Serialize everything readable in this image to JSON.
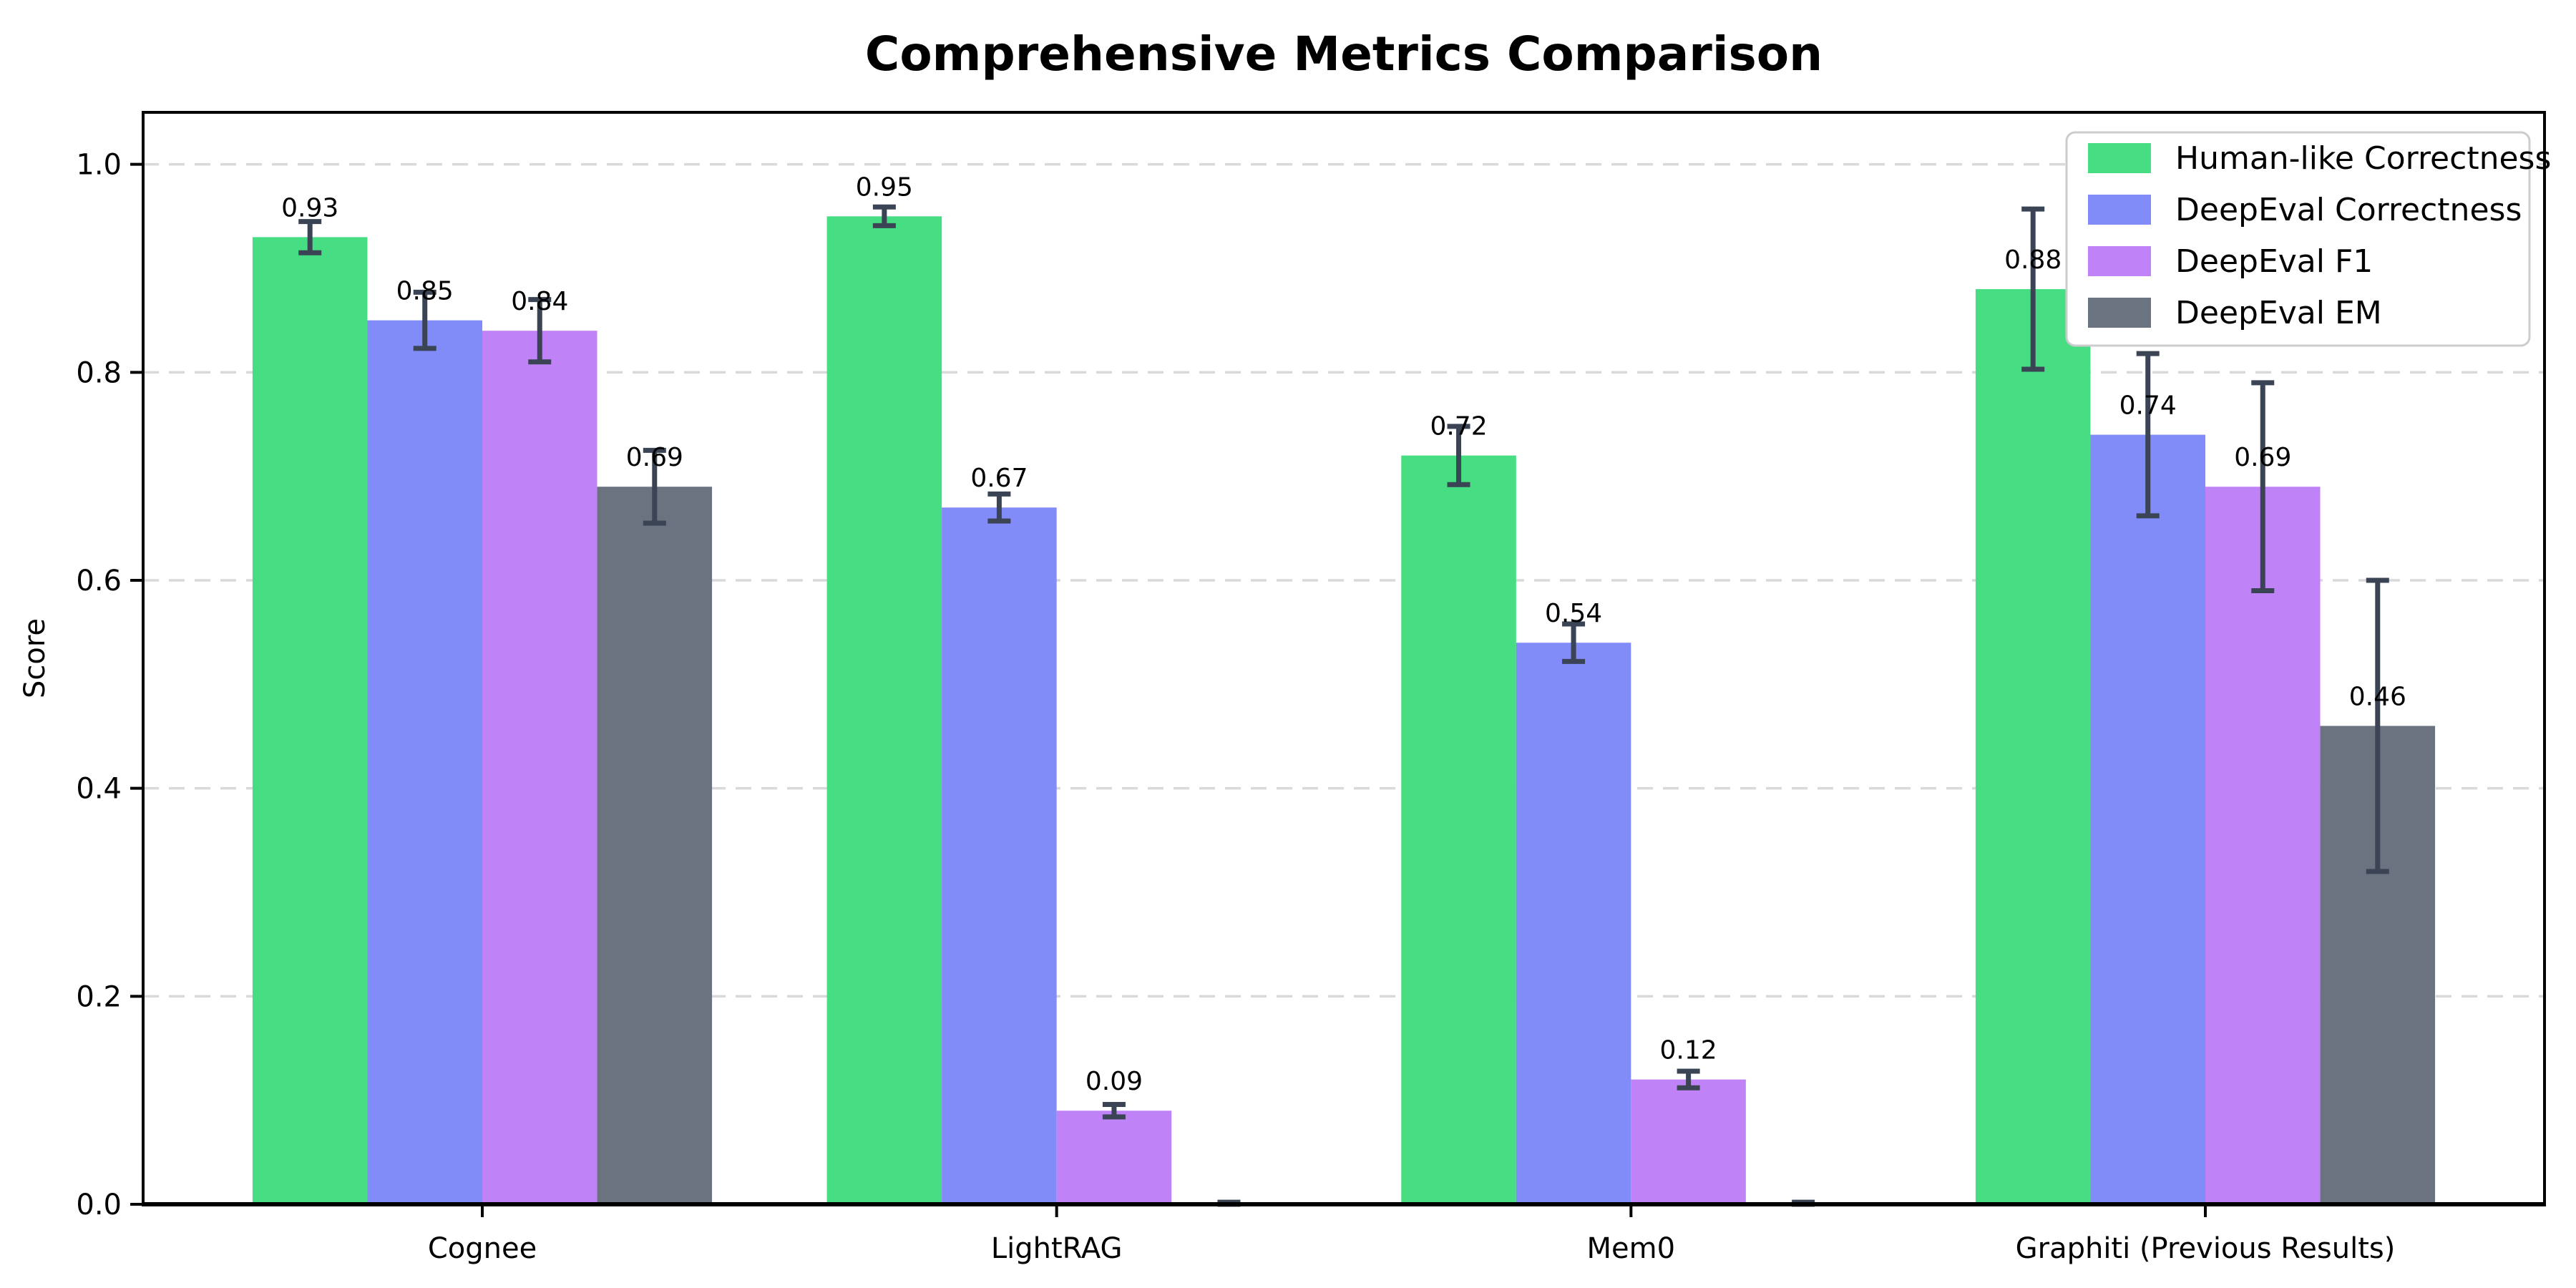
{
  "chart_data": {
    "type": "bar",
    "title": "Comprehensive Metrics Comparison",
    "ylabel": "Score",
    "xlabel": "",
    "categories": [
      "Cognee",
      "LightRAG",
      "Mem0",
      "Graphiti (Previous Results)"
    ],
    "series": [
      {
        "name": "Human-like Correctness",
        "color": "#47dd82",
        "values": [
          0.93,
          0.95,
          0.72,
          0.88
        ],
        "errors": [
          0.015,
          0.009,
          0.028,
          0.077
        ],
        "labels": [
          "0.93",
          "0.95",
          "0.72",
          "0.88"
        ]
      },
      {
        "name": "DeepEval Correctness",
        "color": "#818cf8",
        "values": [
          0.85,
          0.67,
          0.54,
          0.74
        ],
        "errors": [
          0.027,
          0.013,
          0.018,
          0.078
        ],
        "labels": [
          "0.85",
          "0.67",
          "0.54",
          "0.74"
        ]
      },
      {
        "name": "DeepEval F1",
        "color": "#bf83f7",
        "values": [
          0.84,
          0.09,
          0.12,
          0.69
        ],
        "errors": [
          0.03,
          0.006,
          0.008,
          0.1
        ],
        "labels": [
          "0.84",
          "0.09",
          "0.12",
          "0.69"
        ]
      },
      {
        "name": "DeepEval EM",
        "color": "#6b7280",
        "values": [
          0.69,
          0.0,
          0.0,
          0.46
        ],
        "errors": [
          0.035,
          0.002,
          0.002,
          0.14
        ],
        "labels": [
          "0.69",
          "",
          "",
          "0.46"
        ]
      }
    ],
    "yticks": [
      "0.0",
      "0.2",
      "0.4",
      "0.6",
      "0.8",
      "1.0"
    ],
    "ytick_values": [
      0.0,
      0.2,
      0.4,
      0.6,
      0.8,
      1.0
    ],
    "ylim": [
      0,
      1.05
    ],
    "grid": "horizontal-dashed",
    "legend_position": "upper right",
    "colors": {
      "error_bar": "#3a4454",
      "grid_line": "#d9d9d9",
      "axis": "#000000",
      "background": "#ffffff",
      "legend_border": "#cccccc"
    }
  }
}
